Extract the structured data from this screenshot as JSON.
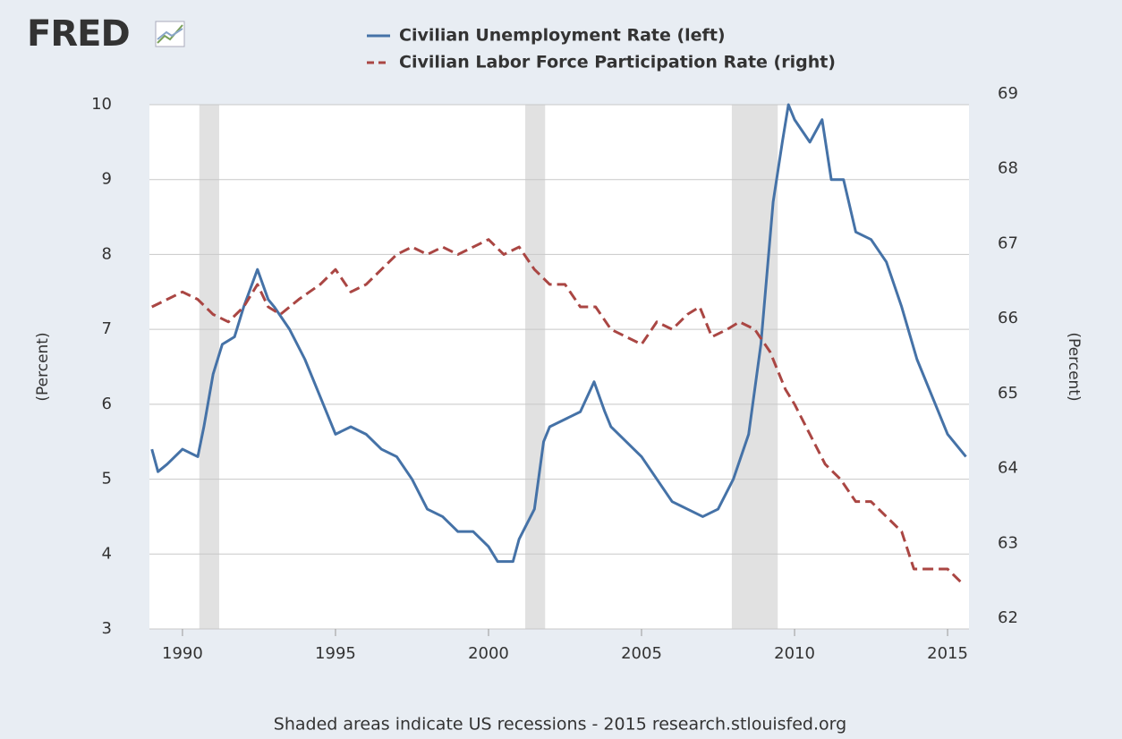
{
  "logo": "FRED",
  "chart_data": {
    "type": "line",
    "ylabel": "(Percent)",
    "y2label": "(Percent)",
    "footer": "Shaded areas indicate US recessions - 2015 research.stlouisfed.org",
    "xlim": [
      1988.92,
      2015.7
    ],
    "xticks": [
      1990,
      1995,
      2000,
      2005,
      2010,
      2015
    ],
    "ylim": [
      3,
      10
    ],
    "yticks": [
      3,
      4,
      5,
      6,
      7,
      8,
      9,
      10
    ],
    "y2lim": [
      62,
      69
    ],
    "y2ticks": [
      62,
      63,
      64,
      65,
      66,
      67,
      68,
      69
    ],
    "grid": true,
    "recessions": [
      [
        1990.55,
        1991.2
      ],
      [
        2001.2,
        2001.85
      ],
      [
        2007.95,
        2009.45
      ]
    ],
    "series": [
      {
        "name": "Civilian Unemployment Rate (left)",
        "color": "#4572a7",
        "dash": false,
        "x": [
          1989.0,
          1989.2,
          1989.5,
          1990.0,
          1990.5,
          1990.7,
          1991.0,
          1991.3,
          1991.7,
          1992.0,
          1992.45,
          1992.8,
          1993.0,
          1993.5,
          1994.0,
          1994.5,
          1995.0,
          1995.5,
          1996.0,
          1996.5,
          1997.0,
          1997.5,
          1998.0,
          1998.5,
          1999.0,
          1999.5,
          2000.0,
          2000.3,
          2000.8,
          2001.0,
          2001.5,
          2001.8,
          2002.0,
          2002.5,
          2003.0,
          2003.45,
          2003.8,
          2004.0,
          2004.5,
          2005.0,
          2005.5,
          2006.0,
          2006.5,
          2007.0,
          2007.5,
          2008.0,
          2008.5,
          2008.9,
          2009.3,
          2009.6,
          2009.8,
          2010.0,
          2010.5,
          2010.9,
          2011.2,
          2011.6,
          2012.0,
          2012.5,
          2013.0,
          2013.5,
          2014.0,
          2014.5,
          2015.0,
          2015.6
        ],
        "values": [
          5.4,
          5.1,
          5.2,
          5.4,
          5.3,
          5.7,
          6.4,
          6.8,
          6.9,
          7.3,
          7.8,
          7.4,
          7.3,
          7.0,
          6.6,
          6.1,
          5.6,
          5.7,
          5.6,
          5.4,
          5.3,
          5.0,
          4.6,
          4.5,
          4.3,
          4.3,
          4.1,
          3.9,
          3.9,
          4.2,
          4.6,
          5.5,
          5.7,
          5.8,
          5.9,
          6.3,
          5.9,
          5.7,
          5.5,
          5.3,
          5.0,
          4.7,
          4.6,
          4.5,
          4.6,
          5.0,
          5.6,
          6.8,
          8.7,
          9.5,
          10.0,
          9.8,
          9.5,
          9.8,
          9.0,
          9.0,
          8.3,
          8.2,
          7.9,
          7.3,
          6.6,
          6.1,
          5.6,
          5.3
        ]
      },
      {
        "name": "Civilian Labor Force Participation Rate (right)",
        "color": "#aa4643",
        "dash": true,
        "axis": "y2",
        "x": [
          1989.0,
          1989.5,
          1990.0,
          1990.5,
          1991.0,
          1991.5,
          1992.0,
          1992.45,
          1992.8,
          1993.2,
          1993.8,
          1994.5,
          1995.0,
          1995.5,
          1996.0,
          1996.5,
          1997.0,
          1997.5,
          1998.0,
          1998.5,
          1999.0,
          1999.5,
          2000.0,
          2000.5,
          2001.0,
          2001.5,
          2002.0,
          2002.5,
          2003.0,
          2003.5,
          2004.0,
          2004.5,
          2005.0,
          2005.5,
          2006.0,
          2006.5,
          2006.9,
          2007.3,
          2007.8,
          2008.2,
          2008.7,
          2009.2,
          2009.7,
          2010.0,
          2010.5,
          2011.0,
          2011.5,
          2012.0,
          2012.5,
          2013.0,
          2013.5,
          2013.9,
          2014.3,
          2014.8,
          2015.0,
          2015.5
        ],
        "values": [
          66.3,
          66.4,
          66.5,
          66.4,
          66.2,
          66.1,
          66.3,
          66.6,
          66.3,
          66.2,
          66.4,
          66.6,
          66.8,
          66.5,
          66.6,
          66.8,
          67.0,
          67.1,
          67.0,
          67.1,
          67.0,
          67.1,
          67.2,
          67.0,
          67.1,
          66.8,
          66.6,
          66.6,
          66.3,
          66.3,
          66.0,
          65.9,
          65.8,
          66.1,
          66.0,
          66.2,
          66.3,
          65.9,
          66.0,
          66.1,
          66.0,
          65.7,
          65.2,
          65.0,
          64.6,
          64.2,
          64.0,
          63.7,
          63.7,
          63.5,
          63.3,
          62.8,
          62.8,
          62.8,
          62.8,
          62.6
        ]
      }
    ]
  }
}
